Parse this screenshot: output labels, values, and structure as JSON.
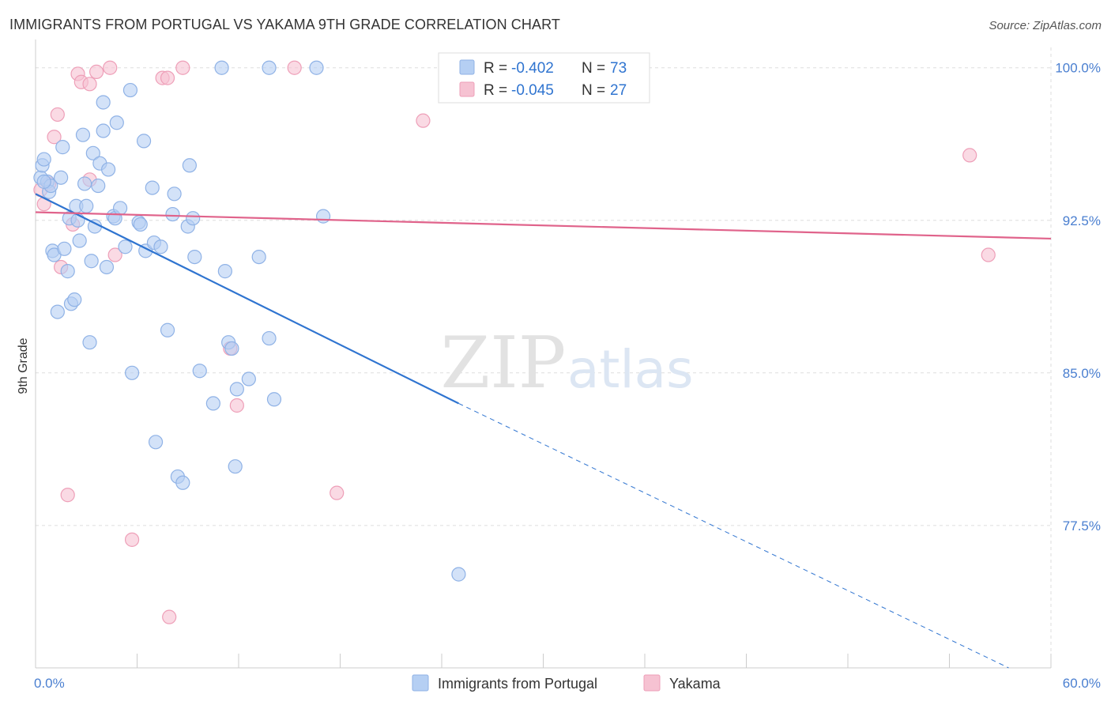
{
  "title": "IMMIGRANTS FROM PORTUGAL VS YAKAMA 9TH GRADE CORRELATION CHART",
  "source": "Source: ZipAtlas.com",
  "watermark": {
    "zip": "ZIP",
    "atlas": "atlas"
  },
  "colors": {
    "blue_fill": "#b5cff3",
    "blue_stroke": "#8fb2e6",
    "blue_line": "#2f74d0",
    "pink_fill": "#f6c2d2",
    "pink_stroke": "#ee9fb8",
    "pink_line": "#e0638b",
    "tick_label": "#4a7fd0",
    "grid": "#dddddd"
  },
  "legend": {
    "rows": [
      {
        "r_label": "R =",
        "r_value": "-0.402",
        "n_label": "N =",
        "n_value": "73",
        "series": "blue"
      },
      {
        "r_label": "R =",
        "r_value": "-0.045",
        "n_label": "N =",
        "n_value": "27",
        "series": "pink"
      }
    ]
  },
  "chart_data": {
    "type": "scatter",
    "xlabel": "",
    "ylabel": "9th Grade",
    "xlim": [
      0,
      60
    ],
    "ylim": [
      70.5,
      101
    ],
    "x_tick_labels": [
      {
        "value": 0,
        "label": "0.0%"
      },
      {
        "value": 60,
        "label": "60.0%"
      }
    ],
    "y_tick_labels": [
      {
        "value": 100,
        "label": "100.0%"
      },
      {
        "value": 92.5,
        "label": "92.5%"
      },
      {
        "value": 85,
        "label": "85.0%"
      },
      {
        "value": 77.5,
        "label": "77.5%"
      }
    ],
    "grid": true,
    "legend_position": "top-center",
    "series": [
      {
        "name": "Immigrants from Portugal",
        "color": "blue",
        "trend": {
          "x0": 0,
          "y0": 93.8,
          "x1": 25,
          "y1": 83.5,
          "dash_to_x": 57.5,
          "dash_to_y": 70.5
        },
        "points": [
          [
            0.3,
            94.6
          ],
          [
            0.4,
            95.2
          ],
          [
            0.5,
            95.5
          ],
          [
            0.7,
            94.4
          ],
          [
            0.8,
            93.9
          ],
          [
            0.9,
            94.2
          ],
          [
            1.0,
            91.0
          ],
          [
            1.1,
            90.8
          ],
          [
            1.3,
            88.0
          ],
          [
            1.5,
            94.6
          ],
          [
            1.6,
            96.1
          ],
          [
            1.7,
            91.1
          ],
          [
            1.9,
            90.0
          ],
          [
            2.0,
            92.6
          ],
          [
            2.1,
            88.4
          ],
          [
            2.3,
            88.6
          ],
          [
            2.4,
            93.2
          ],
          [
            2.5,
            92.5
          ],
          [
            2.6,
            91.5
          ],
          [
            2.8,
            96.7
          ],
          [
            2.9,
            94.3
          ],
          [
            3.0,
            93.2
          ],
          [
            3.2,
            86.5
          ],
          [
            3.3,
            90.5
          ],
          [
            3.4,
            95.8
          ],
          [
            3.5,
            92.2
          ],
          [
            3.7,
            94.2
          ],
          [
            3.8,
            95.3
          ],
          [
            4.0,
            96.9
          ],
          [
            4.0,
            98.3
          ],
          [
            4.2,
            90.2
          ],
          [
            4.3,
            95.0
          ],
          [
            4.6,
            92.7
          ],
          [
            4.7,
            92.6
          ],
          [
            4.8,
            97.3
          ],
          [
            5.0,
            93.1
          ],
          [
            5.3,
            91.2
          ],
          [
            5.6,
            98.9
          ],
          [
            5.7,
            85.0
          ],
          [
            6.1,
            92.4
          ],
          [
            6.2,
            92.3
          ],
          [
            6.4,
            96.4
          ],
          [
            6.5,
            91.0
          ],
          [
            6.9,
            94.1
          ],
          [
            7.0,
            91.4
          ],
          [
            7.1,
            81.6
          ],
          [
            7.4,
            91.2
          ],
          [
            7.8,
            87.1
          ],
          [
            8.1,
            92.8
          ],
          [
            8.2,
            93.8
          ],
          [
            8.4,
            79.9
          ],
          [
            8.7,
            79.6
          ],
          [
            9.0,
            92.2
          ],
          [
            9.1,
            95.2
          ],
          [
            9.3,
            92.6
          ],
          [
            9.4,
            90.7
          ],
          [
            9.7,
            85.1
          ],
          [
            11.0,
            100.0
          ],
          [
            10.5,
            83.5
          ],
          [
            11.2,
            90.0
          ],
          [
            11.4,
            86.5
          ],
          [
            11.6,
            86.2
          ],
          [
            11.8,
            80.4
          ],
          [
            11.9,
            84.2
          ],
          [
            12.6,
            84.7
          ],
          [
            13.2,
            90.7
          ],
          [
            13.8,
            100.0
          ],
          [
            13.8,
            86.7
          ],
          [
            14.1,
            83.7
          ],
          [
            16.6,
            100.0
          ],
          [
            17.0,
            92.7
          ],
          [
            25.0,
            75.1
          ],
          [
            0.5,
            94.4
          ]
        ]
      },
      {
        "name": "Yakama",
        "color": "pink",
        "trend": {
          "x0": 0,
          "y0": 92.9,
          "x1": 60,
          "y1": 91.6
        },
        "points": [
          [
            0.3,
            94.0
          ],
          [
            0.5,
            93.3
          ],
          [
            0.8,
            94.3
          ],
          [
            1.1,
            96.6
          ],
          [
            1.3,
            97.7
          ],
          [
            1.5,
            90.2
          ],
          [
            1.9,
            79.0
          ],
          [
            2.2,
            92.3
          ],
          [
            2.5,
            99.7
          ],
          [
            2.7,
            99.3
          ],
          [
            3.2,
            99.2
          ],
          [
            3.2,
            94.5
          ],
          [
            3.6,
            99.8
          ],
          [
            4.4,
            100.0
          ],
          [
            4.7,
            90.8
          ],
          [
            5.7,
            76.8
          ],
          [
            7.5,
            99.5
          ],
          [
            7.8,
            99.5
          ],
          [
            7.9,
            73.0
          ],
          [
            8.7,
            100.0
          ],
          [
            11.5,
            86.2
          ],
          [
            11.9,
            83.4
          ],
          [
            15.3,
            100.0
          ],
          [
            17.8,
            79.1
          ],
          [
            22.9,
            97.4
          ],
          [
            55.2,
            95.7
          ],
          [
            56.3,
            90.8
          ]
        ]
      }
    ]
  }
}
